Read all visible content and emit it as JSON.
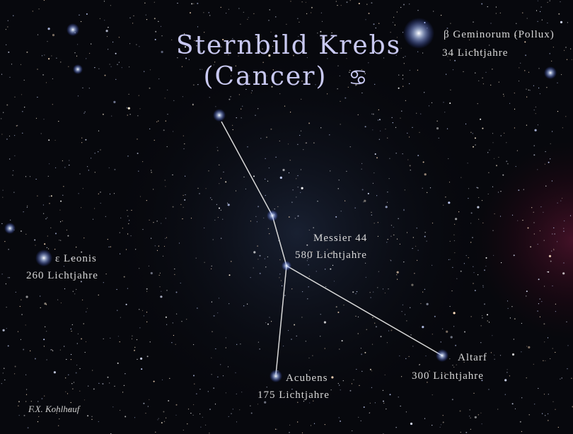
{
  "title": {
    "line1": "Sternbild Krebs",
    "line2": "(Cancer)",
    "symbol": "♋"
  },
  "stars": [
    {
      "name": "β Geminorum (Pollux)",
      "distance": "34 Lichtjahre"
    },
    {
      "name": "Messier 44",
      "distance": "580 Lichtjahre"
    },
    {
      "name": "ε Leonis",
      "distance": "260 Lichtjahre"
    },
    {
      "name": "Altarf",
      "distance": "300 Lichtjahre"
    },
    {
      "name": "Acubens",
      "distance": "175 Lichtjahre"
    }
  ],
  "signature": "F.X. Kohlhauf"
}
